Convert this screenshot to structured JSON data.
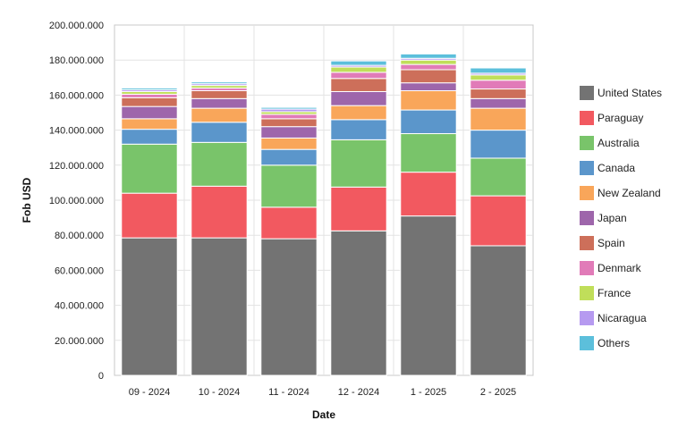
{
  "chart_data": {
    "type": "bar",
    "stacked": true,
    "xlabel": "Date",
    "ylabel": "Fob USD",
    "ylim": [
      0,
      200000000
    ],
    "y_ticks": [
      "0",
      "20.000.000",
      "40.000.000",
      "60.000.000",
      "80.000.000",
      "100.000.000",
      "120.000.000",
      "140.000.000",
      "160.000.000",
      "180.000.000",
      "200.000.000"
    ],
    "grid": true,
    "legend_position": "right",
    "categories": [
      "09 - 2024",
      "10 - 2024",
      "11 - 2024",
      "12 - 2024",
      "1 - 2025",
      "2 - 2025"
    ],
    "series": [
      {
        "name": "United States",
        "color": "#737373",
        "values": [
          78500000,
          78500000,
          78000000,
          82500000,
          91000000,
          74000000
        ]
      },
      {
        "name": "Paraguay",
        "color": "#f25960",
        "values": [
          25500000,
          29500000,
          18000000,
          25000000,
          25000000,
          28500000
        ]
      },
      {
        "name": "Australia",
        "color": "#79c46a",
        "values": [
          28000000,
          25000000,
          24000000,
          27000000,
          22000000,
          21500000
        ]
      },
      {
        "name": "Canada",
        "color": "#5b96cb",
        "values": [
          8500000,
          11500000,
          9000000,
          11500000,
          13500000,
          16000000
        ]
      },
      {
        "name": "New Zealand",
        "color": "#f9a65a",
        "values": [
          6000000,
          8000000,
          6500000,
          8000000,
          11000000,
          12500000
        ]
      },
      {
        "name": "Japan",
        "color": "#9e66ab",
        "values": [
          7000000,
          5500000,
          6500000,
          8000000,
          4500000,
          5500000
        ]
      },
      {
        "name": "Spain",
        "color": "#cd6f5a",
        "values": [
          5000000,
          4500000,
          4500000,
          7500000,
          7500000,
          5500000
        ]
      },
      {
        "name": "Denmark",
        "color": "#e17bb8",
        "values": [
          2000000,
          1500000,
          2500000,
          3500000,
          3000000,
          5000000
        ]
      },
      {
        "name": "France",
        "color": "#c0de5a",
        "values": [
          1500000,
          1500000,
          1500000,
          3000000,
          2500000,
          3000000
        ]
      },
      {
        "name": "Nicaragua",
        "color": "#b69af0",
        "values": [
          1000000,
          1000000,
          1500000,
          1000000,
          1000000,
          1000000
        ]
      },
      {
        "name": "Others",
        "color": "#5cbfdb",
        "values": [
          1000000,
          1000000,
          1000000,
          2500000,
          2500000,
          3000000
        ]
      }
    ]
  }
}
